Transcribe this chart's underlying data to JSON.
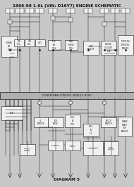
{
  "title": "1996-98 1.6L (VIN: D16Y7) ENGINE SCHEMATIC",
  "diagram_label": "DIAGRAM 5",
  "bg_color": "#c8c8c8",
  "line_color": "#1a1a1a",
  "box_color": "#e8e8e8",
  "white_box_color": "#f0f0f0",
  "title_fontsize": 4.2,
  "mid_banner_text": "POWERTRAIN CONTROL MODULE (PCM)",
  "mid_banner_color": "#b0b0b0"
}
